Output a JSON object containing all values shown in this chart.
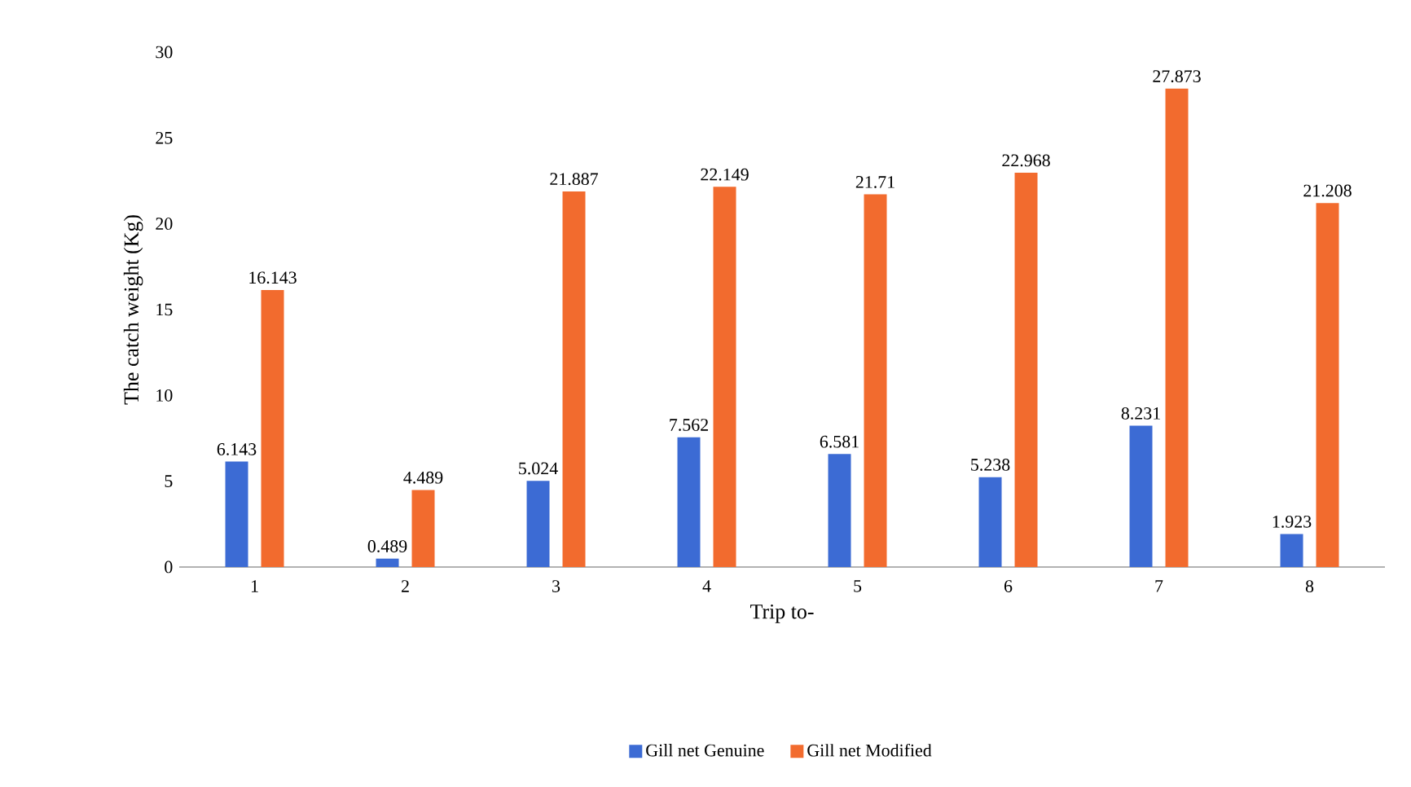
{
  "chart_data": {
    "type": "bar",
    "xlabel": "Trip to-",
    "ylabel": "The catch weight (Kg)",
    "categories": [
      "1",
      "2",
      "3",
      "4",
      "5",
      "6",
      "7",
      "8"
    ],
    "series": [
      {
        "name": "Gill net Genuine",
        "color": "#3c6bd4",
        "values": [
          6.143,
          0.489,
          5.024,
          7.562,
          6.581,
          5.238,
          8.231,
          1.923
        ]
      },
      {
        "name": "Gill net Modified",
        "color": "#f26b2e",
        "values": [
          16.143,
          4.489,
          21.887,
          22.149,
          21.71,
          22.968,
          27.873,
          21.208
        ]
      }
    ],
    "ylim": [
      0,
      30
    ],
    "yticks": [
      0,
      5,
      10,
      15,
      20,
      25,
      30
    ],
    "data_labels": true,
    "legend": "bottom"
  }
}
